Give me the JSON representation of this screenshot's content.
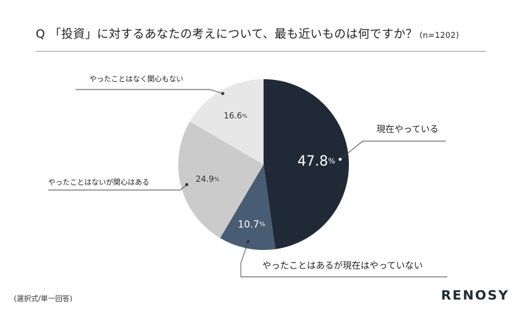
{
  "title": {
    "q": "Q",
    "text": "「投資」に対するあなたの考えについて、最も近いものは何ですか？",
    "n": "(n=1202)"
  },
  "chart_data": {
    "type": "pie",
    "title": "「投資」に対するあなたの考えについて、最も近いものは何ですか？",
    "start_angle_deg": 0,
    "direction": "clockwise",
    "slices": [
      {
        "label": "現在やっている",
        "value": 47.8,
        "display": "47.8",
        "color": "#1f2a36",
        "text_color": "#ffffff"
      },
      {
        "label": "やったことはあるが現在はやっていない",
        "value": 10.7,
        "display": "10.7",
        "color": "#485d73",
        "text_color": "#ffffff"
      },
      {
        "label": "やったことはないが関心はある",
        "value": 24.9,
        "display": "24.9",
        "color": "#cbcbcb",
        "text_color": "#333333"
      },
      {
        "label": "やったことはなく関心もない",
        "value": 16.6,
        "display": "16.6",
        "color": "#e7e7e7",
        "text_color": "#333333"
      }
    ],
    "unit": "%"
  },
  "footer": {
    "note": "(選択式/単一回答)",
    "brand": "RENOSY"
  }
}
